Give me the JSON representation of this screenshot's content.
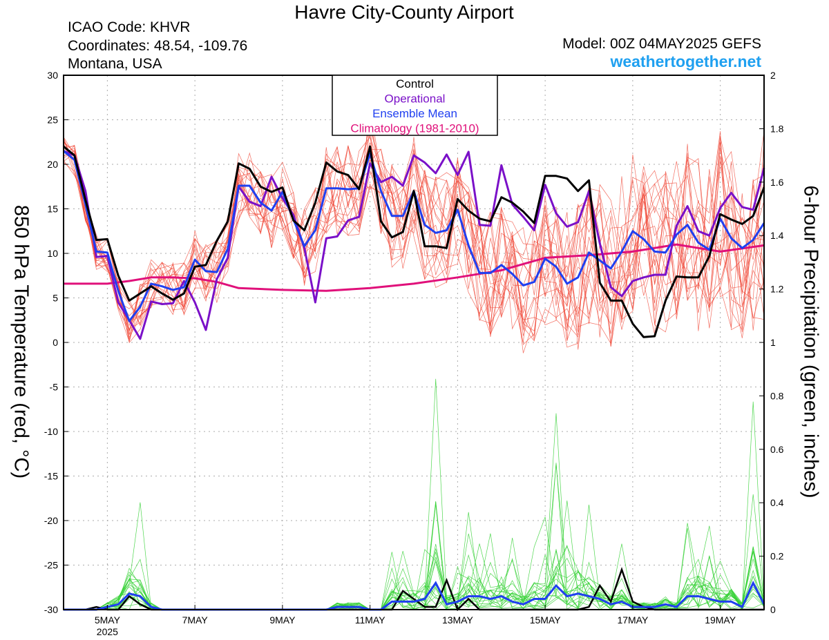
{
  "header": {
    "title": "Havre City-County Airport",
    "icao": "ICAO Code: KHVR",
    "coordinates": "Coordinates: 48.54, -109.76",
    "region": "Montana, USA",
    "model": "Model: 00Z 04MAY2025 GEFS",
    "site": "weathertogether.net"
  },
  "colors": {
    "control": "#000000",
    "operational": "#7a10c8",
    "ensemble_mean": "#1f3ff0",
    "climatology": "#e0107a",
    "members_temp": "#f04a3a",
    "members_precip": "#30d030",
    "site": "#1fa0f0"
  },
  "chart_data": {
    "type": "line",
    "xlabel": "",
    "ylabel": "850 hPa Temperature (red, °C)",
    "y2label": "6-hour Precipitation (green, inches)",
    "x_unit": "days since 2025-05-04 00Z",
    "xlim": [
      0,
      16
    ],
    "ylim": [
      -30,
      30
    ],
    "y2lim": [
      0,
      2
    ],
    "grid": true,
    "legend_position": "top-center",
    "x_ticks": [
      {
        "x": 1,
        "label": "5MAY",
        "sub": "2025"
      },
      {
        "x": 3,
        "label": "7MAY"
      },
      {
        "x": 5,
        "label": "9MAY"
      },
      {
        "x": 7,
        "label": "11MAY"
      },
      {
        "x": 9,
        "label": "13MAY"
      },
      {
        "x": 11,
        "label": "15MAY"
      },
      {
        "x": 13,
        "label": "17MAY"
      },
      {
        "x": 15,
        "label": "19MAY"
      }
    ],
    "y_ticks": [
      30,
      25,
      20,
      15,
      10,
      5,
      0,
      -5,
      -10,
      -15,
      -20,
      -25,
      -30
    ],
    "y2_ticks": [
      "2",
      "1.8",
      "1.6",
      "1.4",
      "1.2",
      "1",
      "0.8",
      "0.6",
      "0.4",
      "0.2",
      "0"
    ],
    "legend": [
      "Control",
      "Operational",
      "Ensemble Mean",
      "Climatology (1981-2010)"
    ],
    "temp_step_days": 0.25,
    "series": [
      {
        "name": "Control",
        "values": [
          22,
          21,
          16,
          11.5,
          11.6,
          7.5,
          4.7,
          5.5,
          6.3,
          5.5,
          4.8,
          5.5,
          8.5,
          8.7,
          11.4,
          13.6,
          20.1,
          19.5,
          17.5,
          16.9,
          17.4,
          13.7,
          12.6,
          15.7,
          20.2,
          19.2,
          18.8,
          17.2,
          22,
          13.6,
          11.8,
          12.4,
          17,
          10.8,
          10.8,
          10.6,
          16.1,
          14.8,
          13.9,
          13.6,
          16.3,
          15.7,
          14.7,
          13.4,
          18.7,
          18.7,
          18.4,
          17,
          18.2,
          6.7,
          4.7,
          4.7,
          2.1,
          0.6,
          0.7,
          4.7,
          7.4,
          7.3,
          7.3,
          9.7,
          14.4,
          13.8,
          13.3,
          14.2,
          17.4
        ]
      },
      {
        "name": "Operational",
        "values": [
          21.5,
          21,
          17,
          9.6,
          9.7,
          4.5,
          2.5,
          0.4,
          4.6,
          4.3,
          4.4,
          6.9,
          4.5,
          1.4,
          7.1,
          9.5,
          17.5,
          15.8,
          15.3,
          18.6,
          16.2,
          14.3,
          10.6,
          4.5,
          11.7,
          11.9,
          13.7,
          14.1,
          20.1,
          18,
          18.6,
          17.6,
          21,
          20.2,
          19,
          21.1,
          18.8,
          21.4,
          13.2,
          13.1,
          19.9,
          15.5,
          14.1,
          12.6,
          17.7,
          14.5,
          13,
          13.5,
          17,
          11.1,
          6.2,
          5.2,
          6.9,
          7.3,
          7.6,
          7.6,
          13.1,
          15.3,
          12.5,
          12,
          15.1,
          16.8,
          15.2,
          14.9,
          19.6
        ]
      },
      {
        "name": "Ensemble Mean",
        "values": [
          21.5,
          20.5,
          15.5,
          10.2,
          10.1,
          5.8,
          2.4,
          4,
          6.6,
          6.3,
          5.9,
          6.2,
          9.3,
          8,
          7.9,
          10.5,
          17.6,
          17.6,
          15.7,
          14.8,
          16.9,
          13.8,
          10.8,
          12.6,
          17.3,
          17.3,
          17.2,
          17.3,
          21.2,
          17,
          14.2,
          14.2,
          17,
          13.2,
          12.3,
          12.6,
          14.9,
          10.9,
          7.8,
          7.8,
          8.7,
          7.7,
          6.4,
          6.8,
          9.4,
          8.5,
          6.6,
          7.3,
          10.1,
          9.2,
          8.3,
          10.2,
          12.5,
          11.6,
          10.2,
          10.1,
          12.1,
          13.2,
          11.2,
          10.4,
          13.9,
          11.7,
          10.6,
          11.5,
          13.4
        ]
      },
      {
        "name": "Climatology (1981-2010)",
        "x": [
          0,
          0.5,
          1,
          1.5,
          2,
          2.5,
          3,
          3.5,
          4,
          5,
          6,
          7,
          8,
          9,
          10,
          11,
          12,
          13,
          14,
          15,
          16
        ],
        "values": [
          6.6,
          6.6,
          6.6,
          6.9,
          7.3,
          7.3,
          7.2,
          6.8,
          6.1,
          5.9,
          5.8,
          6.1,
          6.6,
          7.3,
          8.1,
          9.5,
          9.8,
          10.2,
          11,
          10.2,
          10.9
        ]
      }
    ],
    "precip_series": [
      {
        "name": "Control",
        "values": [
          0,
          0,
          0,
          0.01,
          0,
          0,
          0.05,
          0.02,
          0,
          0,
          0,
          0,
          0,
          0,
          0,
          0,
          0,
          0,
          0,
          0,
          0,
          0,
          0,
          0,
          0,
          0,
          0,
          0,
          0,
          0,
          0,
          0.07,
          0.04,
          0.01,
          0.01,
          0.11,
          0,
          0.04,
          0,
          0,
          0,
          0,
          0,
          0,
          0,
          0,
          0,
          0,
          0.01,
          0.09,
          0.03,
          0.15,
          0.03,
          0.01,
          0,
          0,
          0,
          0,
          0,
          0,
          0,
          0,
          0,
          0,
          0
        ]
      },
      {
        "name": "Ensemble Mean",
        "values": [
          0,
          0,
          0,
          0,
          0.01,
          0.02,
          0.06,
          0.05,
          0.01,
          0,
          0,
          0,
          0,
          0,
          0,
          0,
          0,
          0,
          0,
          0,
          0,
          0,
          0,
          0,
          0,
          0.01,
          0.01,
          0.01,
          0,
          0,
          0.03,
          0.03,
          0.03,
          0.04,
          0.1,
          0.02,
          0.03,
          0.05,
          0.05,
          0.04,
          0.05,
          0.03,
          0.02,
          0.04,
          0.04,
          0.09,
          0.05,
          0.06,
          0.05,
          0.04,
          0.02,
          0.03,
          0.01,
          0.01,
          0.01,
          0.02,
          0.01,
          0.05,
          0.05,
          0.04,
          0.03,
          0.03,
          0.01,
          0.1,
          0.02
        ]
      }
    ]
  }
}
